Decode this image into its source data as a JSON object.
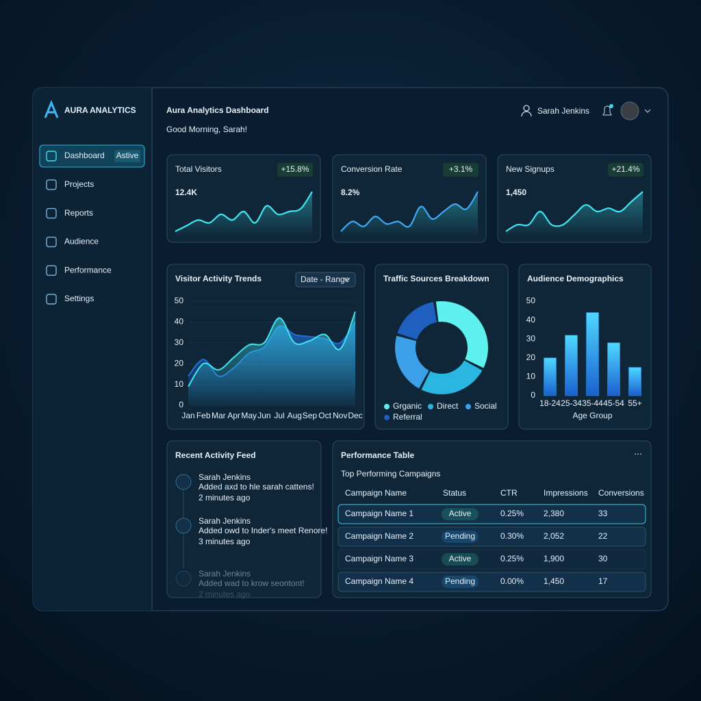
{
  "sidebar": {
    "brand": "AURA ANALYTICS",
    "nav": [
      {
        "label": "Dashboard",
        "badge": "Astive"
      },
      {
        "label": "Projects"
      },
      {
        "label": "Reports"
      },
      {
        "label": "Audience"
      },
      {
        "label": "Performance"
      },
      {
        "label": "Settings"
      }
    ]
  },
  "header": {
    "title": "Aura Analytics Dashboard",
    "greeting": "Good Morning, Sarah!",
    "user": "Sarah Jenkins"
  },
  "kpis": [
    {
      "label": "Total Visitors",
      "value": "12.4K",
      "change": "+15.8%",
      "type": "area",
      "color": "#3fe6f0",
      "trend": [
        1,
        2,
        3,
        2.5,
        4,
        3,
        4.5,
        2.5,
        5.5,
        4,
        4.5,
        5,
        8
      ]
    },
    {
      "label": "Conversion Rate",
      "value": "8.2%",
      "type": "area",
      "change": "+3.1%",
      "color": "#3fa9f5",
      "trend": [
        1,
        3,
        2,
        4,
        2.5,
        3,
        2,
        6,
        3.5,
        5,
        6.5,
        5.5,
        9
      ]
    },
    {
      "label": "New Signups",
      "value": "1,450",
      "type": "area",
      "change": "+21.4%",
      "color": "#3fe6f0",
      "trend": [
        1,
        2,
        2,
        4,
        2,
        2,
        3.5,
        5,
        4,
        4.5,
        4,
        5.5,
        7
      ]
    }
  ],
  "visitor_trends": {
    "type": "area",
    "title": "Visitor Activity Trends",
    "control": "Date - Range",
    "categories": [
      "Jan",
      "Feb",
      "Mar",
      "Apr",
      "May",
      "Jun",
      "Jul",
      "Aug",
      "Sep",
      "Oct",
      "Nov",
      "Dec"
    ],
    "series": [
      {
        "color": "#1f6fd6",
        "values": [
          14,
          22,
          14,
          18,
          25,
          28,
          38,
          34,
          33,
          32,
          30,
          40
        ]
      },
      {
        "color": "#40e4f2",
        "values": [
          9,
          20,
          17,
          23,
          29,
          30,
          42,
          30,
          31,
          34,
          27,
          45
        ]
      }
    ],
    "ylim": [
      0,
      50
    ],
    "yticks": [
      0,
      10,
      20,
      30,
      40,
      50
    ],
    "grid": true
  },
  "traffic_sources": {
    "type": "pie",
    "title": "Traffic Sources Breakdown",
    "categories": [
      "Grganic",
      "Direct",
      "Social",
      "Referral"
    ],
    "values": [
      35,
      25,
      22,
      18
    ],
    "colors": [
      "#5ff0f0",
      "#29b6e0",
      "#3ba0e8",
      "#1f5fc0"
    ]
  },
  "demographics": {
    "type": "bar",
    "title": "Audience Demographics",
    "x_label": "Age Group",
    "categories": [
      "18-24",
      "25-34",
      "35-44",
      "45-54",
      "55+"
    ],
    "values": [
      20,
      32,
      44,
      28,
      15
    ],
    "color": "#2a9cf0",
    "ylim": [
      0,
      50
    ],
    "yticks": [
      0,
      10,
      20,
      30,
      40,
      50
    ]
  },
  "activity_feed": {
    "title": "Recent Activity Feed",
    "items": [
      {
        "name": "Sarah Jenkins",
        "text": "Added axd to hle sarah cattens!",
        "time": "2 minutes ago"
      },
      {
        "name": "Sarah Jenkins",
        "text": "Added owd to Inder's meet Renore!",
        "time": "3 minutes ago"
      },
      {
        "name": "Sarah Jenkins",
        "text": "Added wad to krow seontont!",
        "time": "2 minutes ago"
      }
    ]
  },
  "performance_table": {
    "title": "Performance Table",
    "subtitle": "Top Performing Campaigns",
    "columns": [
      "Campaign Name",
      "Status",
      "CTR",
      "Impressions",
      "Conversions"
    ],
    "rows": [
      [
        "Campaign Name 1",
        "Active",
        "0.25%",
        "2,380",
        "33"
      ],
      [
        "Campaign Name 2",
        "Pending",
        "0.30%",
        "2,052",
        "22"
      ],
      [
        "Campaign Name 3",
        "Active",
        "0.25%",
        "1,900",
        "30"
      ],
      [
        "Campaign Name 4",
        "Pending",
        "0.00%",
        "1,450",
        "17"
      ]
    ],
    "status_colors": [
      "#2ec79a",
      "#2f9cf0",
      "#2ec79a",
      "#2f9cf0"
    ]
  }
}
